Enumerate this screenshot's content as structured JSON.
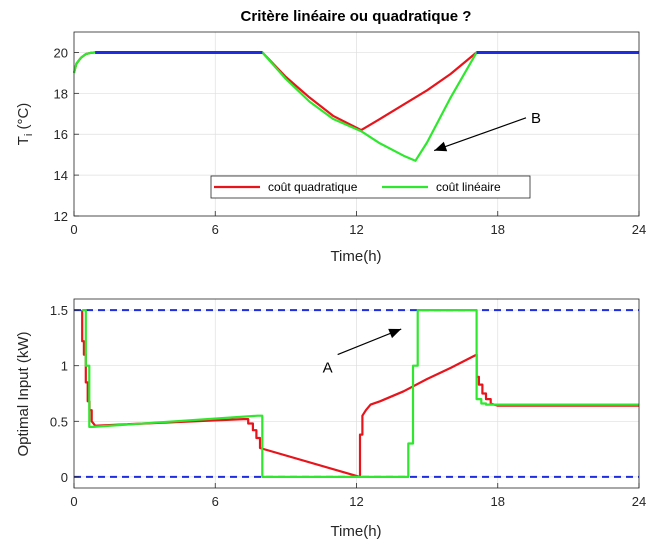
{
  "colors": {
    "red": "#e8141c",
    "green": "#2ee82e",
    "blue": "#1f2de0",
    "axis": "#262626",
    "grid": "#dfdfdf"
  },
  "chart_data": [
    {
      "type": "line",
      "title": "Critère linéaire ou quadratique ?",
      "xlabel": "Time(h)",
      "ylabel_main": "T",
      "ylabel_sub": "i",
      "ylabel_unit": " (°C)",
      "xlim": [
        0,
        24
      ],
      "ylim": [
        12,
        21
      ],
      "xticks": [
        0,
        6,
        12,
        18,
        24
      ],
      "yticks": [
        12,
        14,
        16,
        18,
        20
      ],
      "grid": true,
      "legend": {
        "placement": "bottom-center",
        "entries": [
          "coût quadratique",
          "coût linéaire"
        ]
      },
      "annotations": [
        {
          "text": "B",
          "arrow_from": [
            19.2,
            16.8
          ],
          "arrow_to": [
            15.3,
            15.2
          ]
        }
      ],
      "series": [
        {
          "name": "coût quadratique",
          "color": "red",
          "x": [
            0,
            0.1,
            0.3,
            0.5,
            0.7,
            0.9,
            8,
            9,
            10,
            11,
            12.2,
            13,
            14,
            15,
            16,
            17.1,
            24
          ],
          "y": [
            19.0,
            19.45,
            19.75,
            19.92,
            19.98,
            20,
            20,
            18.8,
            17.8,
            16.9,
            16.2,
            16.75,
            17.45,
            18.15,
            18.95,
            20,
            20
          ]
        },
        {
          "name": "coût linéaire",
          "color": "green",
          "x": [
            0,
            0.1,
            0.3,
            0.5,
            0.7,
            0.9,
            8,
            9,
            10,
            11,
            12.2,
            13,
            14,
            14.5,
            15,
            16,
            17.1,
            24
          ],
          "y": [
            19.0,
            19.45,
            19.75,
            19.92,
            19.98,
            20,
            20,
            18.7,
            17.6,
            16.75,
            16.15,
            15.55,
            14.95,
            14.7,
            15.6,
            17.8,
            20,
            20
          ]
        },
        {
          "name": "",
          "color": "blue",
          "x": [
            0,
            0.9,
            8,
            17.1,
            24
          ],
          "y": [
            null,
            20,
            20,
            20,
            20
          ],
          "segments": [
            [
              0.9,
              8
            ],
            [
              17.1,
              24
            ]
          ]
        }
      ]
    },
    {
      "type": "line",
      "title": "",
      "xlabel": "Time(h)",
      "ylabel": "Optimal Input (kW)",
      "xlim": [
        0,
        24
      ],
      "ylim": [
        -0.1,
        1.6
      ],
      "xticks": [
        0,
        6,
        12,
        18,
        24
      ],
      "yticks": [
        0,
        0.5,
        1,
        1.5
      ],
      "ytick_labels": [
        "0",
        "0.5",
        "1",
        "1.5"
      ],
      "grid": true,
      "annotations": [
        {
          "text": "A",
          "arrow_from": [
            11.2,
            1.1
          ],
          "arrow_to": [
            13.9,
            1.33
          ]
        }
      ],
      "reference_lines": [
        {
          "y": 1.5,
          "color": "blue",
          "style": "dashed"
        },
        {
          "y": 0,
          "color": "blue",
          "style": "dashed"
        }
      ],
      "series": [
        {
          "name": "coût quadratique",
          "color": "red",
          "x": [
            0.35,
            0.35,
            0.42,
            0.42,
            0.5,
            0.5,
            0.58,
            0.58,
            0.66,
            0.66,
            0.75,
            0.75,
            0.9,
            7.2,
            7.4,
            7.4,
            7.6,
            7.6,
            7.75,
            7.75,
            7.9,
            7.9,
            12.15,
            12.15,
            12.25,
            12.25,
            12.4,
            12.6,
            13.0,
            14.0,
            15.0,
            16.0,
            17.1,
            17.1,
            17.2,
            17.2,
            17.35,
            17.35,
            17.5,
            17.5,
            17.7,
            17.7,
            18.0,
            24
          ],
          "y": [
            1.5,
            1.22,
            1.22,
            1.1,
            1.1,
            0.85,
            0.85,
            0.68,
            0.68,
            0.6,
            0.6,
            0.5,
            0.46,
            0.52,
            0.52,
            0.48,
            0.48,
            0.42,
            0.42,
            0.35,
            0.35,
            0.26,
            0.0,
            0.38,
            0.38,
            0.55,
            0.6,
            0.65,
            0.68,
            0.77,
            0.88,
            0.98,
            1.1,
            0.9,
            0.9,
            0.83,
            0.83,
            0.75,
            0.75,
            0.7,
            0.7,
            0.66,
            0.64,
            0.64
          ]
        },
        {
          "name": "coût linéaire",
          "color": "green",
          "x": [
            0.35,
            0.5,
            0.5,
            0.65,
            0.65,
            0.8,
            7.8,
            7.8,
            8.0,
            8.0,
            12.0,
            14.2,
            14.2,
            14.4,
            14.4,
            14.6,
            14.6,
            17.1,
            17.1,
            17.3,
            17.3,
            17.5,
            17.5,
            24
          ],
          "y": [
            1.5,
            1.5,
            1.0,
            1.0,
            0.45,
            0.45,
            0.55,
            0.55,
            0.55,
            0.0,
            0.0,
            0.0,
            0.3,
            0.3,
            1.0,
            1.0,
            1.5,
            1.5,
            0.7,
            0.7,
            0.66,
            0.66,
            0.65,
            0.65
          ]
        }
      ]
    }
  ]
}
